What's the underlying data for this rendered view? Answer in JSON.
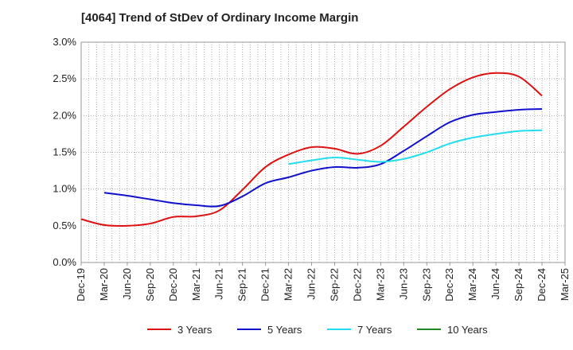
{
  "chart_data": {
    "type": "line",
    "title": "[4064]  Trend of StDev of Ordinary Income Margin",
    "x_tick_labels": [
      "Dec-19",
      "Mar-20",
      "Jun-20",
      "Sep-20",
      "Dec-20",
      "Mar-21",
      "Jun-21",
      "Sep-21",
      "Dec-21",
      "Mar-22",
      "Jun-22",
      "Sep-22",
      "Dec-22",
      "Mar-23",
      "Jun-23",
      "Sep-23",
      "Dec-23",
      "Mar-24",
      "Jun-24",
      "Sep-24",
      "Dec-24",
      "Mar-25"
    ],
    "y_tick_labels": [
      "0.0%",
      "0.5%",
      "1.0%",
      "1.5%",
      "2.0%",
      "2.5%",
      "3.0%"
    ],
    "ylim": [
      0,
      3.0
    ],
    "y_unit": "%",
    "grid": true,
    "legend_position": "bottom",
    "series": [
      {
        "name": "3 Years",
        "color": "#dd1111",
        "x": [
          "Dec-19",
          "Mar-20",
          "Jun-20",
          "Sep-20",
          "Dec-20",
          "Mar-21",
          "Jun-21",
          "Sep-21",
          "Dec-21",
          "Mar-22",
          "Jun-22",
          "Sep-22",
          "Dec-22",
          "Mar-23",
          "Jun-23",
          "Sep-23",
          "Dec-23",
          "Mar-24",
          "Jun-24",
          "Sep-24",
          "Dec-24"
        ],
        "values": [
          0.59,
          0.51,
          0.5,
          0.53,
          0.62,
          0.63,
          0.71,
          0.99,
          1.3,
          1.47,
          1.57,
          1.55,
          1.48,
          1.59,
          1.85,
          2.12,
          2.36,
          2.52,
          2.58,
          2.53,
          2.27
        ]
      },
      {
        "name": "5 Years",
        "color": "#1111cc",
        "x": [
          "Mar-20",
          "Jun-20",
          "Sep-20",
          "Dec-20",
          "Mar-21",
          "Jun-21",
          "Sep-21",
          "Dec-21",
          "Mar-22",
          "Jun-22",
          "Sep-22",
          "Dec-22",
          "Mar-23",
          "Jun-23",
          "Sep-23",
          "Dec-23",
          "Mar-24",
          "Jun-24",
          "Sep-24",
          "Dec-24"
        ],
        "values": [
          0.95,
          0.91,
          0.86,
          0.81,
          0.78,
          0.77,
          0.9,
          1.08,
          1.16,
          1.25,
          1.3,
          1.29,
          1.34,
          1.52,
          1.72,
          1.91,
          2.01,
          2.05,
          2.08,
          2.09
        ]
      },
      {
        "name": "7 Years",
        "color": "#22ddee",
        "x": [
          "Mar-22",
          "Jun-22",
          "Sep-22",
          "Dec-22",
          "Mar-23",
          "Jun-23",
          "Sep-23",
          "Dec-23",
          "Mar-24",
          "Jun-24",
          "Sep-24",
          "Dec-24"
        ],
        "values": [
          1.34,
          1.39,
          1.43,
          1.4,
          1.37,
          1.41,
          1.5,
          1.62,
          1.7,
          1.75,
          1.79,
          1.8
        ]
      },
      {
        "name": "10 Years",
        "color": "#228822",
        "x": [],
        "values": []
      }
    ]
  }
}
